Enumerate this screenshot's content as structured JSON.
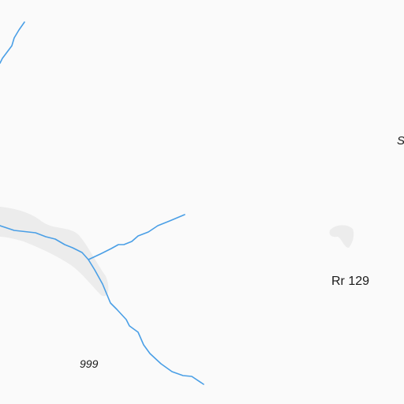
{
  "map": {
    "background_color": "#fafafa",
    "water_color": "#4a9fe6",
    "terrain_shade_color": "#ececec",
    "labels": {
      "elevation": "999",
      "route": "Rr 129",
      "edge_fragment": "S"
    }
  }
}
